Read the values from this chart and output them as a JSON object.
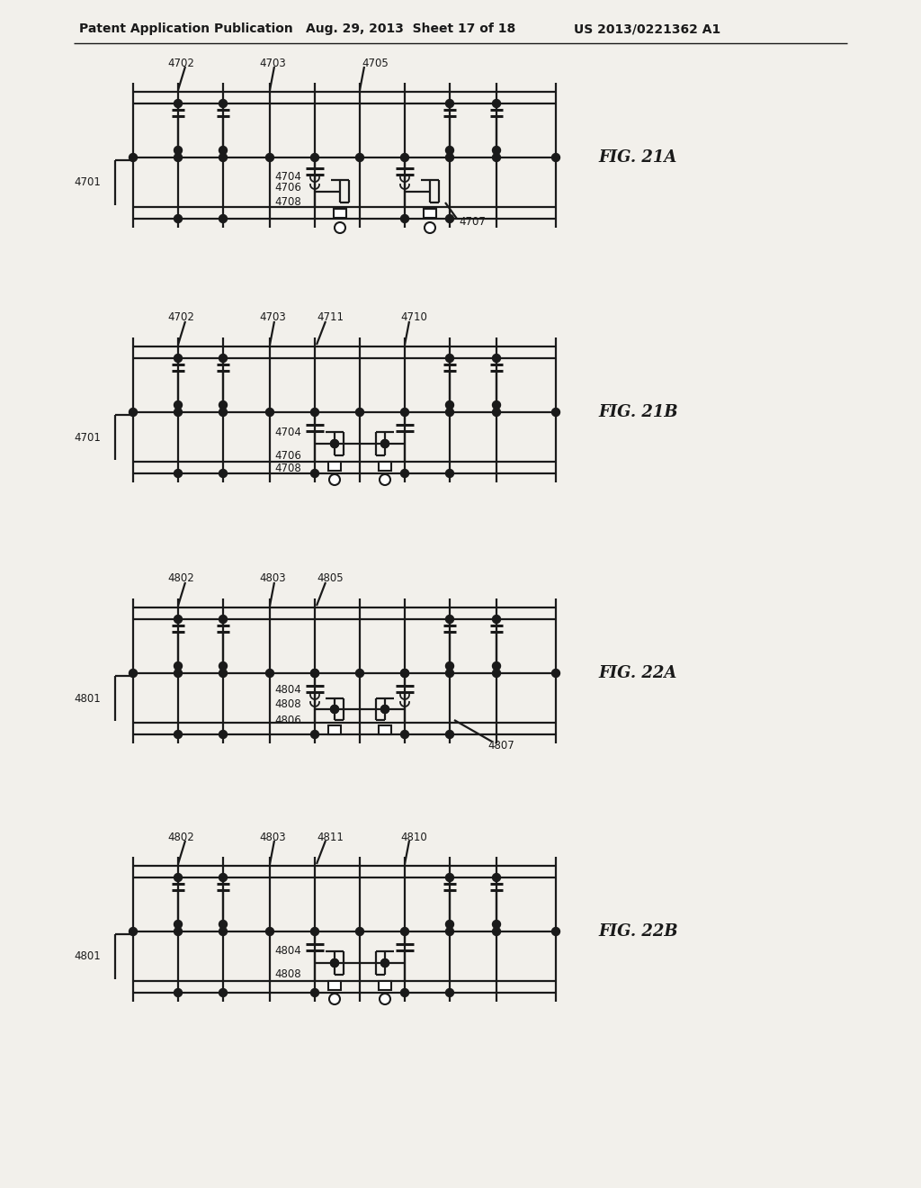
{
  "bg_color": "#f2f0eb",
  "line_color": "#1a1a1a",
  "header_text": "Patent Application Publication",
  "header_date": "Aug. 29, 2013  Sheet 17 of 18",
  "header_patent": "US 2013/0221362 A1",
  "fig21a_labels": {
    "top": [
      "4702",
      "4703",
      "4705"
    ],
    "side": "4701",
    "inner": [
      "4704",
      "4706",
      "4708"
    ],
    "ref": "4707"
  },
  "fig21b_labels": {
    "top": [
      "4702",
      "4703",
      "4711",
      "4710"
    ],
    "side": "4701",
    "inner": [
      "4704",
      "4706",
      "4708"
    ]
  },
  "fig22a_labels": {
    "top": [
      "4802",
      "4803",
      "4805"
    ],
    "side": "4801",
    "inner": [
      "4804",
      "4808",
      "4806"
    ],
    "ref": "4807"
  },
  "fig22b_labels": {
    "top": [
      "4802",
      "4803",
      "4811",
      "4810"
    ],
    "side": "4801",
    "inner": [
      "4804",
      "4808"
    ]
  },
  "fig_names": [
    "FIG. 21A",
    "FIG. 21B",
    "FIG. 22A",
    "FIG. 22B"
  ]
}
